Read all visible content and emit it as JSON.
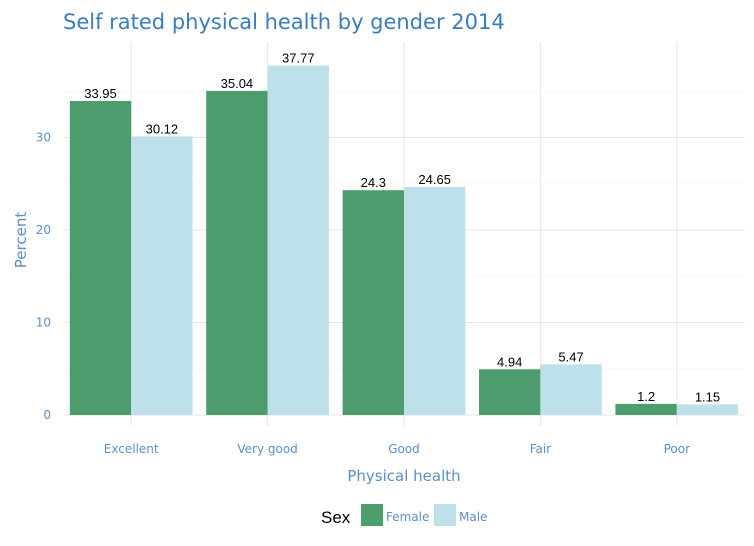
{
  "chart_data": {
    "type": "bar",
    "title": "Self rated physical health by gender 2014",
    "xlabel": "Physical health",
    "ylabel": "Percent",
    "categories": [
      "Excellent",
      "Very good",
      "Good",
      "Fair",
      "Poor"
    ],
    "series": [
      {
        "name": "Female",
        "values": [
          33.95,
          35.04,
          24.3,
          4.94,
          1.2
        ],
        "labels": [
          "33.95",
          "35.04",
          "24.3",
          "4.94",
          "1.2"
        ],
        "color": "#4d9c6e"
      },
      {
        "name": "Male",
        "values": [
          30.12,
          37.77,
          24.65,
          5.47,
          1.15
        ],
        "labels": [
          "30.12",
          "37.77",
          "24.65",
          "5.47",
          "1.15"
        ],
        "color": "#bde0eb"
      }
    ],
    "yticks": [
      "0",
      "10",
      "20",
      "30"
    ],
    "ylim": [
      0,
      40
    ],
    "grid": true,
    "legend": {
      "title": "Sex",
      "position": "bottom"
    }
  }
}
